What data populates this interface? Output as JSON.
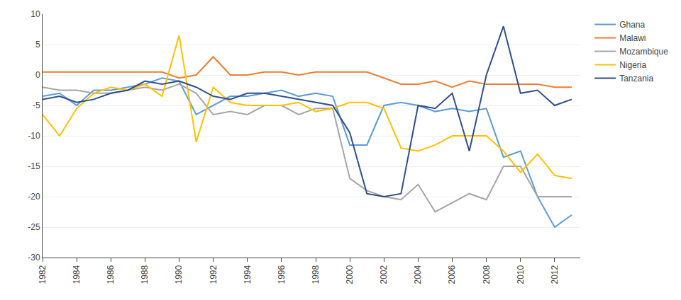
{
  "chart_data": {
    "type": "line",
    "x": [
      1982,
      1983,
      1984,
      1985,
      1986,
      1987,
      1988,
      1989,
      1990,
      1991,
      1992,
      1993,
      1994,
      1995,
      1996,
      1997,
      1998,
      1999,
      2000,
      2001,
      2002,
      2003,
      2004,
      2005,
      2006,
      2007,
      2008,
      2009,
      2010,
      2011,
      2012,
      2013
    ],
    "series": [
      {
        "name": "Ghana",
        "color": "#5B9BD5",
        "values": [
          -3.5,
          -3.0,
          -5.0,
          -2.5,
          -2.5,
          -2.0,
          -1.5,
          -0.5,
          -1.0,
          -6.5,
          -5.0,
          -3.5,
          -3.5,
          -3.0,
          -2.5,
          -3.5,
          -3.0,
          -3.5,
          -11.5,
          -11.5,
          -5.0,
          -4.5,
          -5.0,
          -6.0,
          -5.5,
          -6.0,
          -5.5,
          -13.5,
          -12.5,
          -20.0,
          -25.0,
          -23.0
        ]
      },
      {
        "name": "Malawi",
        "color": "#ED7D31",
        "values": [
          0.5,
          0.5,
          0.5,
          0.5,
          0.5,
          0.5,
          0.5,
          0.5,
          -0.5,
          0.0,
          3.0,
          0.0,
          0.0,
          0.5,
          0.5,
          0.0,
          0.5,
          0.5,
          0.5,
          0.5,
          -0.5,
          -1.5,
          -1.5,
          -1.0,
          -2.0,
          -1.0,
          -1.5,
          -1.5,
          -1.5,
          -1.5,
          -2.0,
          -2.0
        ]
      },
      {
        "name": "Mozambique",
        "color": "#A5A5A5",
        "values": [
          -2.0,
          -2.5,
          -2.5,
          -3.0,
          -3.0,
          -2.5,
          -2.0,
          -2.5,
          -1.5,
          -3.0,
          -6.5,
          -6.0,
          -6.5,
          -5.0,
          -5.0,
          -6.5,
          -5.5,
          -5.5,
          -17.0,
          -19.0,
          -20.0,
          -20.5,
          -18.0,
          -22.5,
          -21.0,
          -19.5,
          -20.5,
          -15.0,
          -15.0,
          -20.0,
          -20.0,
          -20.0
        ]
      },
      {
        "name": "Nigeria",
        "color": "#FFC000",
        "values": [
          -6.5,
          -10.0,
          -5.5,
          -3.0,
          -2.0,
          -2.5,
          -1.5,
          -3.5,
          6.5,
          -11.0,
          -2.0,
          -4.5,
          -5.0,
          -5.0,
          -5.0,
          -4.5,
          -6.0,
          -5.5,
          -4.5,
          -4.5,
          -5.5,
          -12.0,
          -12.5,
          -11.5,
          -10.0,
          -10.0,
          -10.0,
          -12.5,
          -16.0,
          -13.0,
          -16.5,
          -17.0
        ]
      },
      {
        "name": "Tanzania",
        "color": "#2E4F8C",
        "values": [
          -4.0,
          -3.5,
          -4.5,
          -4.0,
          -3.0,
          -2.5,
          -1.0,
          -1.5,
          -1.0,
          -2.0,
          -3.5,
          -4.0,
          -3.0,
          -3.0,
          -3.5,
          -4.0,
          -4.5,
          -5.0,
          -9.5,
          -19.5,
          -20.0,
          -19.5,
          -5.0,
          -5.5,
          -3.0,
          -12.5,
          0.0,
          8.0,
          -3.0,
          -2.5,
          -5.0,
          -4.0
        ]
      }
    ],
    "xlim": [
      1982,
      2013.5
    ],
    "xticks": [
      1982,
      1984,
      1986,
      1988,
      1990,
      1992,
      1994,
      1996,
      1998,
      2000,
      2002,
      2004,
      2006,
      2008,
      2010,
      2012
    ],
    "ylim": [
      -30,
      10
    ],
    "yticks": [
      -30,
      -25,
      -20,
      -15,
      -10,
      -5,
      0,
      5,
      10
    ],
    "grid": "y",
    "legend": "right"
  }
}
